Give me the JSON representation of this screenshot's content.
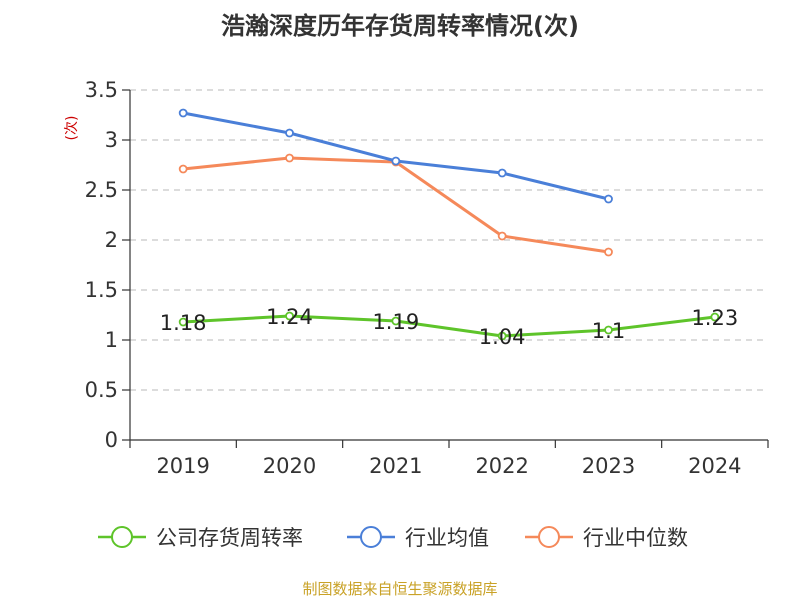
{
  "title": "浩瀚深度历年存货周转率情况(次)",
  "source": "制图数据来自恒生聚源数据库",
  "colors": {
    "company": "#5ec42a",
    "industry_avg": "#4a7fd8",
    "industry_median": "#f5895a"
  },
  "chart_data": {
    "type": "line",
    "title": "浩瀚深度历年存货周转率情况(次)",
    "ylabel": "(次)",
    "categories": [
      "2019",
      "2020",
      "2021",
      "2022",
      "2023",
      "2024"
    ],
    "ylim": [
      0,
      3.5
    ],
    "yticks": [
      {
        "v": 0,
        "label": "0"
      },
      {
        "v": 0.5,
        "label": "0.5"
      },
      {
        "v": 1,
        "label": "1"
      },
      {
        "v": 1.5,
        "label": "1.5"
      },
      {
        "v": 2,
        "label": "2"
      },
      {
        "v": 2.5,
        "label": "2.5"
      },
      {
        "v": 3,
        "label": "3"
      },
      {
        "v": 3.5,
        "label": "3.5"
      }
    ],
    "grid": true,
    "legend_position": "bottom",
    "series": [
      {
        "name": "公司存货周转率",
        "key": "company",
        "values": [
          1.18,
          1.24,
          1.19,
          1.04,
          1.1,
          1.23
        ],
        "labels": [
          "1.18",
          "1.24",
          "1.19",
          "1.04",
          "1.1",
          "1.23"
        ]
      },
      {
        "name": "行业均值",
        "key": "industry_avg",
        "values": [
          3.27,
          3.07,
          2.79,
          2.67,
          2.41,
          null
        ]
      },
      {
        "name": "行业中位数",
        "key": "industry_median",
        "values": [
          2.71,
          2.82,
          2.78,
          2.04,
          1.88,
          null
        ]
      }
    ]
  }
}
